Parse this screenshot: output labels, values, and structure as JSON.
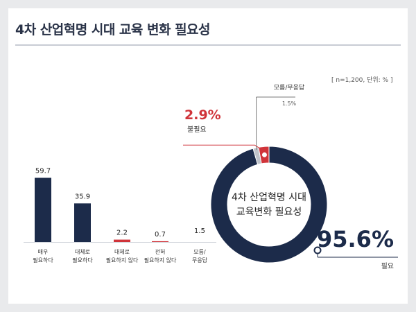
{
  "title": "4차 산업혁명 시대 교육 변화 필요성",
  "note": "[ n=1,200, 단위: % ]",
  "colors": {
    "navy": "#1c2b4a",
    "red": "#d0343a",
    "gray": "#bfc3ca",
    "dot_gray": "#9aa0a8"
  },
  "chart_data": [
    {
      "type": "bar",
      "categories": [
        [
          "매우",
          "필요하다"
        ],
        [
          "대체로",
          "필요하다"
        ],
        [
          "대체로",
          "필요하지 않다"
        ],
        [
          "전혀",
          "필요하지 않다"
        ],
        [
          "모름/",
          "무응답"
        ]
      ],
      "values": [
        59.7,
        35.9,
        2.2,
        0.7,
        1.5
      ],
      "value_labels": [
        "59.7",
        "35.9",
        "2.2",
        "0.7",
        "1.5"
      ],
      "colors": [
        "#1c2b4a",
        "#1c2b4a",
        "#d0343a",
        "#d0343a",
        "#bfc3ca"
      ]
    },
    {
      "type": "pie",
      "title": "4차 산업혁명 시대 교육변화 필요성",
      "title_lines": [
        "4차 산업혁명 시대",
        "교육변화 필요성"
      ],
      "slices": [
        {
          "label": "필요",
          "value": 95.6,
          "value_label": "95.6%",
          "color": "#1c2b4a"
        },
        {
          "label": "불필요",
          "value": 2.9,
          "value_label": "2.9%",
          "color": "#d0343a"
        },
        {
          "label": "모름/무응답",
          "value": 1.5,
          "value_label": "1.5%",
          "color": "#bfc3ca"
        }
      ]
    }
  ]
}
